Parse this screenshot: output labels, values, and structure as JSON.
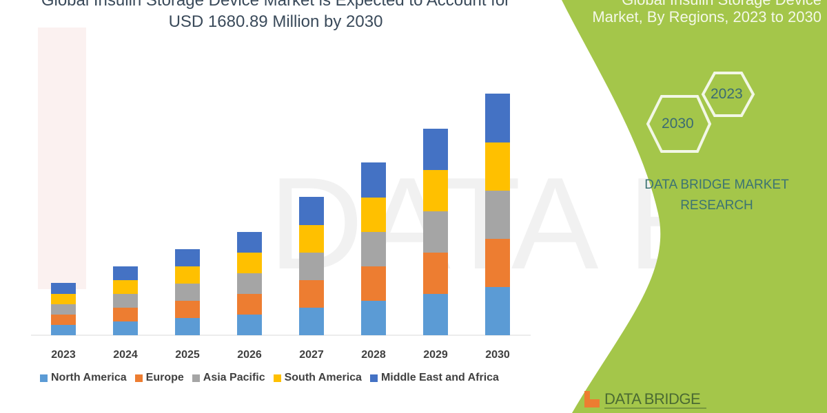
{
  "title_line1": "Global Insulin Storage Device Market is Expected to Account for",
  "title_line2": "USD 1680.89 Million by 2030",
  "side_panel": {
    "title_line1": "Global Insulin Storage Device",
    "title_line2": "Market, By Regions, 2023 to 2030",
    "hex_start": "2023",
    "hex_end": "2030",
    "brand_line1": "DATA BRIDGE MARKET",
    "brand_line2": "RESEARCH",
    "logo_text": "DATA BRIDGE",
    "panel_color": "#a4c64a"
  },
  "chart_data": {
    "type": "bar",
    "stacked": true,
    "title": "",
    "xlabel": "",
    "ylabel": "",
    "y_axis_shown": false,
    "grid": false,
    "legend_placement": "bottom",
    "categories": [
      "2023",
      "2024",
      "2025",
      "2026",
      "2027",
      "2028",
      "2029",
      "2030"
    ],
    "series": [
      {
        "name": "North America",
        "color": "#5b9bd5",
        "values": [
          15,
          20,
          25,
          30,
          40,
          50,
          60,
          70
        ]
      },
      {
        "name": "Europe",
        "color": "#ed7d31",
        "values": [
          15,
          20,
          25,
          30,
          40,
          50,
          60,
          70
        ]
      },
      {
        "name": "Asia Pacific",
        "color": "#a5a5a5",
        "values": [
          15,
          20,
          25,
          30,
          40,
          50,
          60,
          70
        ]
      },
      {
        "name": "South America",
        "color": "#ffc000",
        "values": [
          15,
          20,
          25,
          30,
          40,
          50,
          60,
          70
        ]
      },
      {
        "name": "Middle East and Africa",
        "color": "#4472c4",
        "values": [
          16,
          20,
          25,
          30,
          41,
          51,
          60,
          71
        ]
      }
    ]
  }
}
